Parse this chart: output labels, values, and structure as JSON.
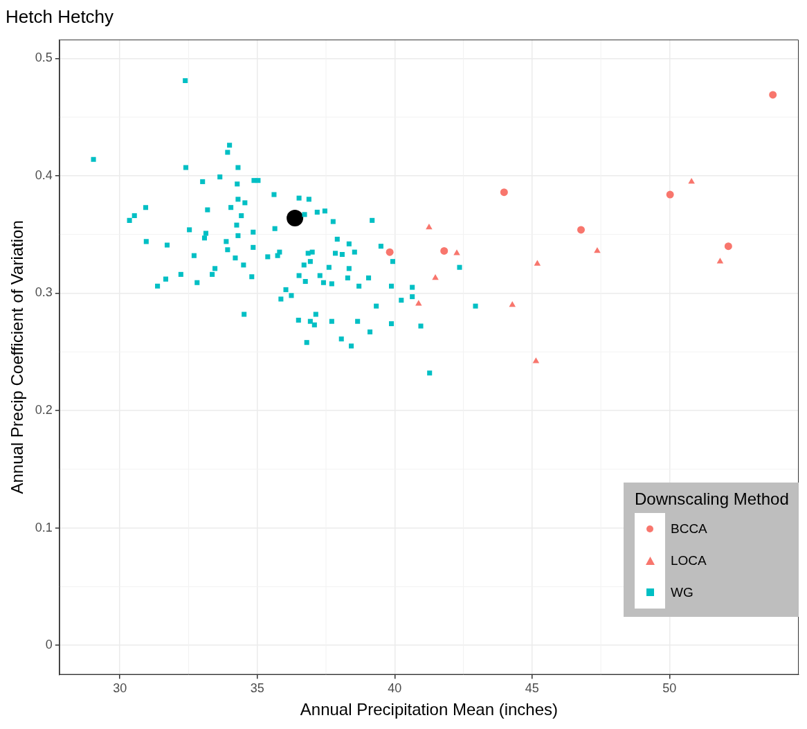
{
  "chart_data": {
    "type": "scatter",
    "title": "Hetch Hetchy",
    "xlabel": "Annual Precipitation Mean (inches)",
    "ylabel": "Annual Precip Coefficient of Variation",
    "legend_title": "Downscaling Method",
    "legend": "bottom right",
    "grid": true,
    "xlim": [
      27.8,
      54.7
    ],
    "xticks": [
      30,
      35,
      40,
      45,
      50
    ],
    "ylim": [
      -0.025,
      0.516
    ],
    "yticks": [
      0,
      0.1,
      0.2,
      0.3,
      0.4,
      0.5
    ],
    "series": [
      {
        "name": "BCCA",
        "color": "#f8766d",
        "marker": "circle",
        "x": [
          39.82,
          43.98,
          41.8,
          46.78,
          50.02,
          52.14,
          53.76
        ],
        "values": [
          0.335,
          0.386,
          0.336,
          0.354,
          0.384,
          0.34,
          0.469
        ]
      },
      {
        "name": "LOCA",
        "color": "#f8766d",
        "marker": "triangle",
        "x": [
          41.25,
          42.26,
          41.48,
          40.87,
          45.19,
          44.28,
          45.14,
          47.37,
          50.8,
          51.84
        ],
        "values": [
          0.356,
          0.334,
          0.313,
          0.291,
          0.325,
          0.29,
          0.242,
          0.336,
          0.395,
          0.327
        ]
      },
      {
        "name": "WG",
        "color": "#00bfc4",
        "marker": "square",
        "x": [
          29.04,
          32.38,
          33.99,
          33.92,
          32.4,
          34.3,
          33.64,
          33.01,
          34.27,
          34.3,
          34.55,
          33.19,
          34.04,
          34.42,
          30.94,
          30.53,
          30.35,
          34.25,
          34.3,
          32.53,
          33.13,
          33.08,
          30.96,
          31.72,
          33.87,
          33.92,
          32.7,
          34.2,
          34.5,
          33.46,
          33.36,
          32.22,
          31.67,
          31.37,
          32.81,
          34.52,
          34.88,
          35.03,
          35.61,
          36.52,
          36.88,
          36.72,
          37.18,
          37.46,
          37.76,
          39.18,
          35.64,
          34.85,
          34.85,
          37.91,
          38.34,
          39.5,
          37.84,
          38.09,
          38.54,
          36.85,
          37.0,
          35.81,
          35.74,
          35.38,
          36.93,
          36.7,
          37.61,
          38.34,
          34.8,
          36.52,
          36.75,
          37.28,
          37.41,
          37.71,
          38.29,
          39.05,
          38.7,
          36.04,
          36.24,
          35.86,
          39.33,
          36.5,
          36.93,
          37.13,
          37.08,
          37.71,
          38.65,
          39.1,
          38.06,
          36.8,
          38.42,
          39.93,
          39.88,
          40.64,
          40.64,
          40.24,
          42.36,
          42.94,
          40.95,
          41.27,
          39.88
        ],
        "values": [
          0.414,
          0.481,
          0.426,
          0.42,
          0.407,
          0.407,
          0.399,
          0.395,
          0.393,
          0.38,
          0.377,
          0.371,
          0.373,
          0.366,
          0.373,
          0.366,
          0.362,
          0.358,
          0.349,
          0.354,
          0.351,
          0.347,
          0.344,
          0.341,
          0.344,
          0.337,
          0.332,
          0.33,
          0.324,
          0.321,
          0.316,
          0.316,
          0.312,
          0.306,
          0.309,
          0.282,
          0.396,
          0.396,
          0.384,
          0.381,
          0.38,
          0.367,
          0.369,
          0.37,
          0.361,
          0.362,
          0.355,
          0.352,
          0.339,
          0.346,
          0.342,
          0.34,
          0.334,
          0.333,
          0.335,
          0.334,
          0.335,
          0.335,
          0.332,
          0.331,
          0.327,
          0.324,
          0.322,
          0.321,
          0.314,
          0.315,
          0.31,
          0.315,
          0.309,
          0.308,
          0.313,
          0.313,
          0.306,
          0.303,
          0.298,
          0.295,
          0.289,
          0.277,
          0.276,
          0.282,
          0.273,
          0.276,
          0.276,
          0.267,
          0.261,
          0.258,
          0.255,
          0.327,
          0.306,
          0.305,
          0.297,
          0.294,
          0.322,
          0.289,
          0.272,
          0.232,
          0.274
        ]
      },
      {
        "color": "#000000",
        "marker": "circle",
        "x": [
          36.37
        ],
        "values": [
          0.364
        ]
      }
    ]
  }
}
